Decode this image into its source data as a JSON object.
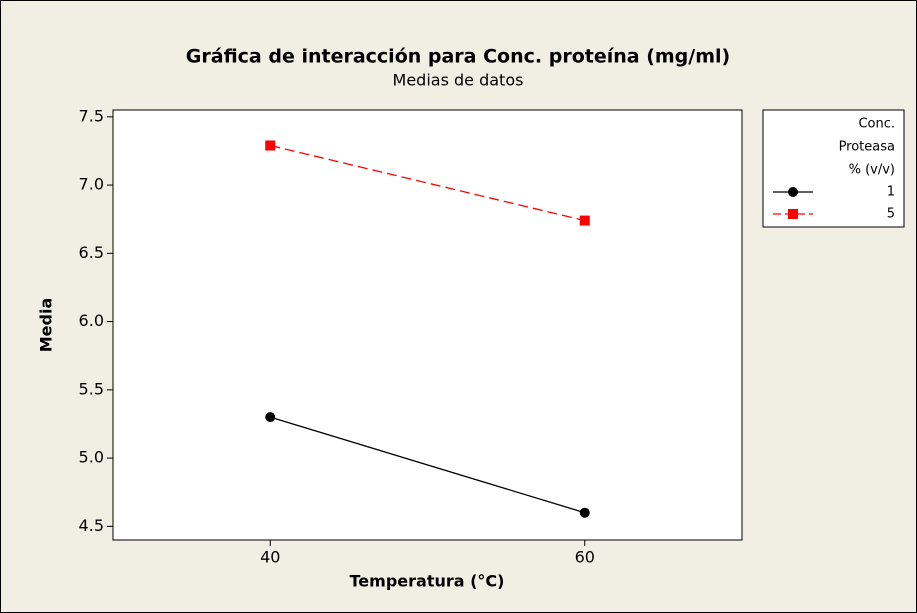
{
  "chart_data": {
    "type": "line",
    "title": "Gráfica de interacción para Conc. proteína (mg/ml)",
    "subtitle": "Medias de datos",
    "x_label": "Temperatura (°C)",
    "y_label": "Media",
    "x": [
      40,
      60
    ],
    "xlim": [
      30,
      70
    ],
    "xticks": [
      40,
      60
    ],
    "ylim": [
      4.4,
      7.55
    ],
    "yticks": [
      {
        "value": 4.5,
        "label": "4.5"
      },
      {
        "value": 5.0,
        "label": "5.0"
      },
      {
        "value": 5.5,
        "label": "5.5"
      },
      {
        "value": 6.0,
        "label": "6.0"
      },
      {
        "value": 6.5,
        "label": "6.5"
      },
      {
        "value": 7.0,
        "label": "7.0"
      },
      {
        "value": 7.5,
        "label": "7.5"
      }
    ],
    "legend_title": [
      "Conc.",
      "Proteasa",
      "% (v/v)"
    ],
    "series": [
      {
        "name": "1",
        "color": "#000000",
        "line_style": "solid",
        "marker": "circle",
        "values": [
          5.3,
          4.6
        ]
      },
      {
        "name": "5",
        "color": "#ff0000",
        "line_style": "dashed",
        "marker": "square",
        "values": [
          7.29,
          6.74
        ]
      }
    ]
  }
}
